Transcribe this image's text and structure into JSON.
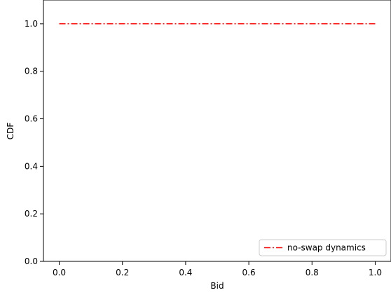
{
  "chart_data": {
    "type": "line",
    "title": "",
    "xlabel": "Bid",
    "ylabel": "CDF",
    "xlim": [
      -0.05,
      1.05
    ],
    "ylim": [
      0.0,
      1.1
    ],
    "xticks": [
      0.0,
      0.2,
      0.4,
      0.6,
      0.8,
      1.0
    ],
    "xtick_labels": [
      "0.0",
      "0.2",
      "0.4",
      "0.6",
      "0.8",
      "1.0"
    ],
    "yticks": [
      0.0,
      0.2,
      0.4,
      0.6,
      0.8,
      1.0
    ],
    "ytick_labels": [
      "0.0",
      "0.2",
      "0.4",
      "0.6",
      "0.8",
      "1.0"
    ],
    "grid": false,
    "legend_position": "bottom-right",
    "series": [
      {
        "name": "no-swap dynamics",
        "color": "#ff0000",
        "line_style": "dash-dot",
        "x": [
          0.0,
          1.0
        ],
        "y": [
          1.0,
          1.0
        ]
      }
    ]
  }
}
